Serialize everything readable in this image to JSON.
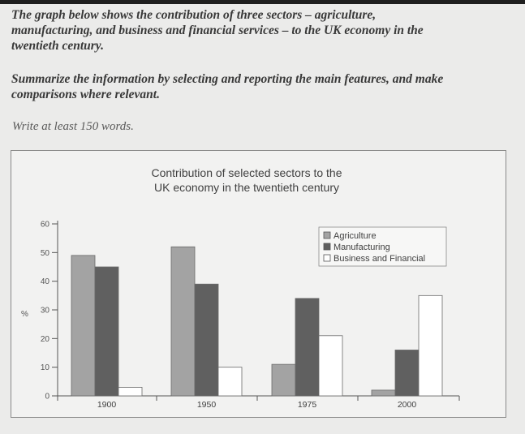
{
  "prompt": {
    "line1": "The graph below shows the contribution of three sectors – agriculture,",
    "line2": "manufacturing, and business and financial services – to the UK economy in the",
    "line3": "twentieth century.",
    "task_line1": "Summarize the information by selecting and reporting the main features, and make",
    "task_line2": "comparisons where relevant.",
    "instruction": "Write at least 150 words."
  },
  "colors": {
    "agriculture": "#a3a3a3",
    "manufacturing": "#606060",
    "business": "#ffffff",
    "axis": "#555555"
  },
  "chart_data": {
    "type": "bar",
    "title_line1": "Contribution of selected sectors to the",
    "title_line2": "UK economy in the twentieth century",
    "ylabel": "%",
    "xlabel": "",
    "ylim": [
      0,
      60
    ],
    "yticks": [
      0,
      10,
      20,
      30,
      40,
      50,
      60
    ],
    "grid": false,
    "legend_position": "top-right",
    "categories": [
      "1900",
      "1950",
      "1975",
      "2000"
    ],
    "series": [
      {
        "name": "Agriculture",
        "values": [
          49,
          52,
          11,
          2
        ]
      },
      {
        "name": "Manufacturing",
        "values": [
          45,
          39,
          34,
          16
        ]
      },
      {
        "name": "Business and Financial",
        "values": [
          3,
          10,
          21,
          35
        ]
      }
    ]
  }
}
